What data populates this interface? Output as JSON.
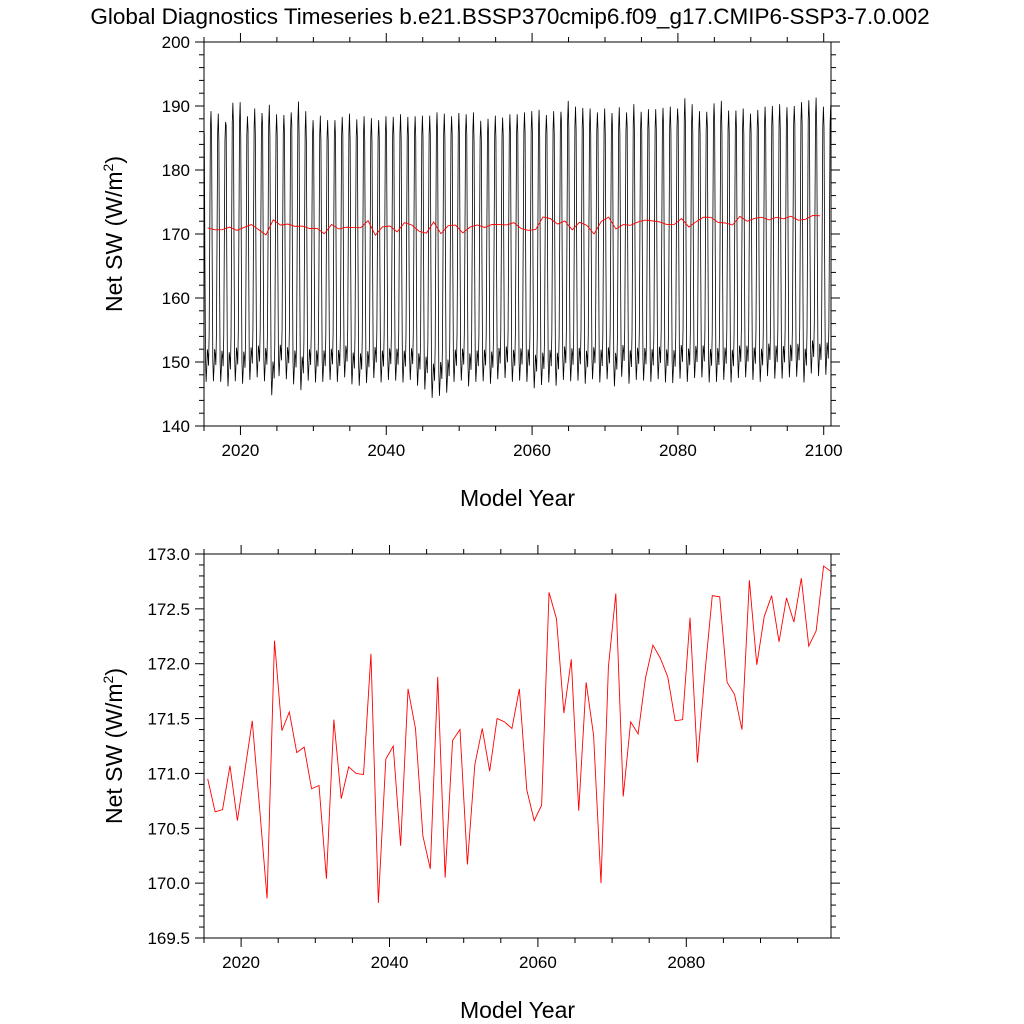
{
  "title": "Global Diagnostics Timeseries b.e21.BSSP370cmip6.f09_g17.CMIP6-SSP3-7.0.002",
  "colors": {
    "monthly": "#000000",
    "annual": "#ff0000",
    "axes": "#000000",
    "background": "#ffffff"
  },
  "chart_data": [
    {
      "type": "line",
      "panel": "top",
      "xlabel": "Model Year",
      "ylabel": "Net SW (W/m",
      "ylabel_sup": "2",
      "ylabel_close": ")",
      "xlim": [
        2015,
        2101
      ],
      "ylim": [
        140,
        200
      ],
      "xticks": [
        2020,
        2040,
        2060,
        2080,
        2100
      ],
      "xtick_labels": [
        "2020",
        "2040",
        "2060",
        "2080",
        "2100"
      ],
      "yticks": [
        140,
        150,
        160,
        170,
        180,
        190,
        200
      ],
      "ytick_labels": [
        "140",
        "150",
        "160",
        "170",
        "180",
        "190",
        "200"
      ],
      "grid": false,
      "legend": "none",
      "monthly_series": {
        "color": "#000000",
        "start_year": 2015,
        "months_per_year": 12,
        "annual_max": [
          189.2,
          188.8,
          187.5,
          190.5,
          190.6,
          188.4,
          189.6,
          188.9,
          190.2,
          188.7,
          188.6,
          189.0,
          190.7,
          189.2,
          187.8,
          188.5,
          187.8,
          187.8,
          188.3,
          188.8,
          187.9,
          188.4,
          188.1,
          187.8,
          188.4,
          188.3,
          188.7,
          188.3,
          188.4,
          188.5,
          188.5,
          189.0,
          188.8,
          188.4,
          188.9,
          188.7,
          189.0,
          187.7,
          188.0,
          188.5,
          188.2,
          188.7,
          188.7,
          189.0,
          189.2,
          189.4,
          188.6,
          189.2,
          189.1,
          190.8,
          189.9,
          189.7,
          189.6,
          189.0,
          189.6,
          188.9,
          189.8,
          189.0,
          190.3,
          189.1,
          189.5,
          189.5,
          189.7,
          189.9,
          189.6,
          191.2,
          190.3,
          189.2,
          189.1,
          190.4,
          190.8,
          189.3,
          189.3,
          189.6,
          188.8,
          189.4,
          189.9,
          190.0,
          190.3,
          189.8,
          190.0,
          190.6,
          190.9,
          191.3,
          189.9,
          190.1
        ],
        "annual_min": [
          146.9,
          147.0,
          146.9,
          146.2,
          147.0,
          146.6,
          147.2,
          147.6,
          147.0,
          144.8,
          147.8,
          147.3,
          146.5,
          145.6,
          147.1,
          146.8,
          146.9,
          147.2,
          146.9,
          147.6,
          146.5,
          146.3,
          146.7,
          147.5,
          146.8,
          147.2,
          147.1,
          146.8,
          147.2,
          146.3,
          145.7,
          144.4,
          144.7,
          145.2,
          146.9,
          147.1,
          146.2,
          146.9,
          147.0,
          146.6,
          147.3,
          147.5,
          146.9,
          147.1,
          146.9,
          145.9,
          146.4,
          146.8,
          146.3,
          147.2,
          147.0,
          147.1,
          146.6,
          147.3,
          146.8,
          147.3,
          146.2,
          147.7,
          146.6,
          147.2,
          147.1,
          146.9,
          147.3,
          146.8,
          146.7,
          147.4,
          146.9,
          147.5,
          147.6,
          146.8,
          146.9,
          147.2,
          146.8,
          147.5,
          147.6,
          147.2,
          146.9,
          147.8,
          147.4,
          147.4,
          147.6,
          147.7,
          146.8,
          148.2,
          147.8,
          148.0
        ]
      },
      "annual_series": {
        "color": "#ff0000",
        "x": [
          2015.5,
          2016.5,
          2017.5,
          2018.5,
          2019.5,
          2020.5,
          2021.5,
          2022.5,
          2023.5,
          2024.5,
          2025.5,
          2026.5,
          2027.5,
          2028.5,
          2029.5,
          2030.5,
          2031.5,
          2032.5,
          2033.5,
          2034.5,
          2035.5,
          2036.5,
          2037.5,
          2038.5,
          2039.5,
          2040.5,
          2041.5,
          2042.5,
          2043.5,
          2044.5,
          2045.5,
          2046.5,
          2047.5,
          2048.5,
          2049.5,
          2050.5,
          2051.5,
          2052.5,
          2053.5,
          2054.5,
          2055.5,
          2056.5,
          2057.5,
          2058.5,
          2059.5,
          2060.5,
          2061.5,
          2062.5,
          2063.5,
          2064.5,
          2065.5,
          2066.5,
          2067.5,
          2068.5,
          2069.5,
          2070.5,
          2071.5,
          2072.5,
          2073.5,
          2074.5,
          2075.5,
          2076.5,
          2077.5,
          2078.5,
          2079.5,
          2080.5,
          2081.5,
          2082.5,
          2083.5,
          2084.5,
          2085.5,
          2086.5,
          2087.5,
          2088.5,
          2089.5,
          2090.5,
          2091.5,
          2092.5,
          2093.5,
          2094.5,
          2095.5,
          2096.5,
          2097.5,
          2098.5,
          2099.5
        ],
        "values": [
          170.95,
          170.65,
          170.67,
          171.07,
          170.57,
          171.02,
          171.48,
          170.68,
          169.86,
          172.21,
          171.39,
          171.56,
          171.19,
          171.24,
          170.86,
          170.89,
          170.04,
          171.49,
          170.77,
          171.06,
          171.0,
          170.99,
          172.09,
          169.82,
          171.13,
          171.25,
          170.34,
          171.77,
          171.41,
          170.43,
          170.13,
          171.88,
          170.05,
          171.3,
          171.4,
          170.17,
          171.08,
          171.41,
          171.02,
          171.5,
          171.47,
          171.41,
          171.77,
          170.85,
          170.57,
          170.71,
          172.65,
          172.41,
          171.55,
          172.04,
          170.66,
          171.83,
          171.35,
          170.0,
          171.97,
          172.64,
          170.79,
          171.47,
          171.36,
          171.87,
          172.17,
          172.05,
          171.88,
          171.48,
          171.49,
          172.42,
          171.1,
          171.91,
          172.62,
          172.61,
          171.83,
          171.72,
          171.4,
          172.76,
          171.99,
          172.43,
          172.62,
          172.2,
          172.6,
          172.38,
          172.78,
          172.16,
          172.3,
          172.89,
          172.84
        ]
      }
    },
    {
      "type": "line",
      "panel": "bottom",
      "xlabel": "Model Year",
      "ylabel": "Net SW (W/m",
      "ylabel_sup": "2",
      "ylabel_close": ")",
      "xlim": [
        2015,
        2099.5
      ],
      "ylim": [
        169.5,
        173.0
      ],
      "xticks": [
        2020,
        2040,
        2060,
        2080
      ],
      "xtick_labels": [
        "2020",
        "2040",
        "2060",
        "2080"
      ],
      "yticks": [
        169.5,
        170.0,
        170.5,
        171.0,
        171.5,
        172.0,
        172.5,
        173.0
      ],
      "ytick_labels": [
        "169.5",
        "170.0",
        "170.5",
        "171.0",
        "171.5",
        "172.0",
        "172.5",
        "173.0"
      ],
      "grid": false,
      "legend": "none",
      "series": [
        {
          "color": "#ff0000",
          "x": [
            2015.5,
            2016.5,
            2017.5,
            2018.5,
            2019.5,
            2020.5,
            2021.5,
            2022.5,
            2023.5,
            2024.5,
            2025.5,
            2026.5,
            2027.5,
            2028.5,
            2029.5,
            2030.5,
            2031.5,
            2032.5,
            2033.5,
            2034.5,
            2035.5,
            2036.5,
            2037.5,
            2038.5,
            2039.5,
            2040.5,
            2041.5,
            2042.5,
            2043.5,
            2044.5,
            2045.5,
            2046.5,
            2047.5,
            2048.5,
            2049.5,
            2050.5,
            2051.5,
            2052.5,
            2053.5,
            2054.5,
            2055.5,
            2056.5,
            2057.5,
            2058.5,
            2059.5,
            2060.5,
            2061.5,
            2062.5,
            2063.5,
            2064.5,
            2065.5,
            2066.5,
            2067.5,
            2068.5,
            2069.5,
            2070.5,
            2071.5,
            2072.5,
            2073.5,
            2074.5,
            2075.5,
            2076.5,
            2077.5,
            2078.5,
            2079.5,
            2080.5,
            2081.5,
            2082.5,
            2083.5,
            2084.5,
            2085.5,
            2086.5,
            2087.5,
            2088.5,
            2089.5,
            2090.5,
            2091.5,
            2092.5,
            2093.5,
            2094.5,
            2095.5,
            2096.5,
            2097.5,
            2098.5,
            2099.5
          ],
          "values": [
            170.95,
            170.65,
            170.67,
            171.07,
            170.57,
            171.02,
            171.48,
            170.68,
            169.86,
            172.21,
            171.39,
            171.56,
            171.19,
            171.24,
            170.86,
            170.89,
            170.04,
            171.49,
            170.77,
            171.06,
            171.0,
            170.99,
            172.09,
            169.82,
            171.13,
            171.25,
            170.34,
            171.77,
            171.41,
            170.43,
            170.13,
            171.88,
            170.05,
            171.3,
            171.4,
            170.17,
            171.08,
            171.41,
            171.02,
            171.5,
            171.47,
            171.41,
            171.77,
            170.85,
            170.57,
            170.71,
            172.65,
            172.41,
            171.55,
            172.04,
            170.66,
            171.83,
            171.35,
            170.0,
            171.97,
            172.64,
            170.79,
            171.47,
            171.36,
            171.87,
            172.17,
            172.05,
            171.88,
            171.48,
            171.49,
            172.42,
            171.1,
            171.91,
            172.62,
            172.61,
            171.83,
            171.72,
            171.4,
            172.76,
            171.99,
            172.43,
            172.62,
            172.2,
            172.6,
            172.38,
            172.78,
            172.16,
            172.3,
            172.89,
            172.84
          ]
        }
      ]
    }
  ]
}
